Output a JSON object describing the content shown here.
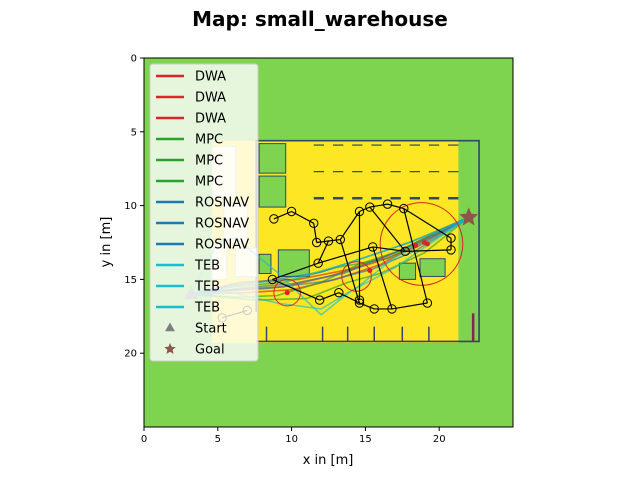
{
  "chart_data": {
    "type": "scatter",
    "title": "Map: small_warehouse",
    "xlabel": "x in [m]",
    "ylabel": "y in [m]",
    "xlim": [
      0,
      25
    ],
    "ylim": [
      25,
      0
    ],
    "x_ticks": [
      "0",
      "5",
      "10",
      "15",
      "20"
    ],
    "y_ticks": [
      "0",
      "5",
      "10",
      "15",
      "20"
    ],
    "legend_position": "top-left",
    "colors": {
      "background_free": "#7ed34f",
      "warehouse_floor": "#fde725",
      "wall": "#30466b",
      "DWA": "#d62728",
      "MPC": "#2ca02c",
      "ROSNAV": "#1f77b4",
      "TEB": "#17becf",
      "start_marker": "#7f7f7f",
      "goal_marker": "#8c564b"
    },
    "legend": [
      {
        "label": "DWA",
        "color": "#d62728",
        "marker": "line"
      },
      {
        "label": "DWA",
        "color": "#d62728",
        "marker": "line"
      },
      {
        "label": "DWA",
        "color": "#d62728",
        "marker": "line"
      },
      {
        "label": "MPC",
        "color": "#2ca02c",
        "marker": "line"
      },
      {
        "label": "MPC",
        "color": "#2ca02c",
        "marker": "line"
      },
      {
        "label": "MPC",
        "color": "#2ca02c",
        "marker": "line"
      },
      {
        "label": "ROSNAV",
        "color": "#1f77b4",
        "marker": "line"
      },
      {
        "label": "ROSNAV",
        "color": "#1f77b4",
        "marker": "line"
      },
      {
        "label": "ROSNAV",
        "color": "#1f77b4",
        "marker": "line"
      },
      {
        "label": "TEB",
        "color": "#17becf",
        "marker": "line"
      },
      {
        "label": "TEB",
        "color": "#17becf",
        "marker": "line"
      },
      {
        "label": "TEB",
        "color": "#17becf",
        "marker": "line"
      },
      {
        "label": "Start",
        "color": "#7f7f7f",
        "marker": "triangle"
      },
      {
        "label": "Goal",
        "color": "#8c564b",
        "marker": "star"
      }
    ],
    "start": [
      3.2,
      16.0
    ],
    "goal": [
      22.0,
      10.8
    ],
    "obstacle_waypoints": [
      [
        8.8,
        10.9
      ],
      [
        10.0,
        10.4
      ],
      [
        11.5,
        11.2
      ],
      [
        11.7,
        12.5
      ],
      [
        12.5,
        12.4
      ],
      [
        13.3,
        12.3
      ],
      [
        14.6,
        10.4
      ],
      [
        15.3,
        10.1
      ],
      [
        16.5,
        9.9
      ],
      [
        17.6,
        10.2
      ],
      [
        20.8,
        12.2
      ],
      [
        20.8,
        13.0
      ],
      [
        17.7,
        13.1
      ],
      [
        15.5,
        12.8
      ],
      [
        11.8,
        13.9
      ],
      [
        8.7,
        15.0
      ],
      [
        13.2,
        15.9
      ],
      [
        14.6,
        16.6
      ],
      [
        15.6,
        17.0
      ],
      [
        16.8,
        17.0
      ],
      [
        19.2,
        16.6
      ],
      [
        11.9,
        16.4
      ],
      [
        7.0,
        17.1
      ],
      [
        5.3,
        17.6
      ],
      [
        14.6,
        16.4
      ]
    ],
    "obstacle_links": [
      [
        0,
        1
      ],
      [
        1,
        2
      ],
      [
        2,
        3
      ],
      [
        3,
        4
      ],
      [
        4,
        5
      ],
      [
        5,
        6
      ],
      [
        6,
        7
      ],
      [
        7,
        8
      ],
      [
        8,
        9
      ],
      [
        9,
        10
      ],
      [
        10,
        11
      ],
      [
        11,
        12
      ],
      [
        12,
        13
      ],
      [
        13,
        14
      ],
      [
        14,
        15
      ],
      [
        15,
        21
      ],
      [
        21,
        16
      ],
      [
        16,
        17
      ],
      [
        17,
        18
      ],
      [
        18,
        19
      ],
      [
        19,
        20
      ],
      [
        20,
        9
      ],
      [
        22,
        23
      ],
      [
        5,
        17
      ],
      [
        6,
        24
      ],
      [
        13,
        19
      ],
      [
        7,
        12
      ],
      [
        4,
        14
      ]
    ],
    "goal_radius_circles": [
      {
        "center": [
          18.8,
          12.6
        ],
        "radius": 2.8
      },
      {
        "center": [
          9.7,
          15.9
        ],
        "radius": 0.9
      },
      {
        "center": [
          14.4,
          14.8
        ],
        "radius": 1.0
      }
    ],
    "trajectories": [
      {
        "planner": "DWA",
        "points": [
          [
            3.2,
            16.0
          ],
          [
            6.0,
            15.7
          ],
          [
            9.5,
            15.5
          ],
          [
            12.5,
            14.8
          ],
          [
            15.5,
            13.9
          ],
          [
            18.5,
            12.8
          ],
          [
            22.0,
            10.8
          ]
        ]
      },
      {
        "planner": "DWA",
        "points": [
          [
            3.2,
            16.0
          ],
          [
            7.0,
            15.9
          ],
          [
            10.0,
            15.7
          ],
          [
            13.0,
            15.0
          ],
          [
            16.0,
            14.0
          ],
          [
            19.0,
            12.4
          ],
          [
            22.0,
            10.8
          ]
        ]
      },
      {
        "planner": "DWA",
        "points": [
          [
            3.2,
            16.0
          ],
          [
            6.5,
            15.2
          ],
          [
            10.5,
            15.0
          ],
          [
            14.0,
            14.3
          ],
          [
            17.0,
            13.2
          ],
          [
            20.0,
            11.7
          ],
          [
            22.0,
            10.8
          ]
        ]
      },
      {
        "planner": "MPC",
        "points": [
          [
            3.2,
            16.0
          ],
          [
            6.2,
            16.2
          ],
          [
            9.0,
            16.1
          ],
          [
            12.0,
            15.2
          ],
          [
            14.5,
            14.0
          ],
          [
            17.5,
            13.0
          ],
          [
            20.5,
            11.5
          ],
          [
            22.0,
            10.8
          ]
        ]
      },
      {
        "planner": "MPC",
        "points": [
          [
            3.2,
            16.0
          ],
          [
            6.0,
            15.5
          ],
          [
            9.5,
            15.2
          ],
          [
            13.0,
            14.2
          ],
          [
            16.5,
            13.6
          ],
          [
            19.5,
            12.0
          ],
          [
            22.0,
            10.8
          ]
        ]
      },
      {
        "planner": "MPC",
        "points": [
          [
            3.2,
            16.0
          ],
          [
            7.5,
            16.4
          ],
          [
            11.0,
            16.3
          ],
          [
            13.8,
            15.2
          ],
          [
            16.0,
            14.6
          ],
          [
            19.0,
            13.2
          ],
          [
            22.0,
            10.8
          ]
        ]
      },
      {
        "planner": "ROSNAV",
        "points": [
          [
            3.2,
            16.0
          ],
          [
            6.0,
            15.4
          ],
          [
            9.0,
            15.0
          ],
          [
            12.0,
            14.5
          ],
          [
            15.0,
            13.5
          ],
          [
            18.0,
            12.5
          ],
          [
            22.0,
            10.8
          ]
        ]
      },
      {
        "planner": "ROSNAV",
        "points": [
          [
            3.2,
            16.0
          ],
          [
            6.5,
            15.6
          ],
          [
            10.0,
            15.3
          ],
          [
            13.5,
            14.6
          ],
          [
            16.5,
            13.4
          ],
          [
            19.5,
            12.1
          ],
          [
            22.0,
            10.8
          ]
        ]
      },
      {
        "planner": "ROSNAV",
        "points": [
          [
            3.2,
            16.0
          ],
          [
            5.5,
            15.8
          ],
          [
            8.5,
            15.6
          ],
          [
            12.5,
            15.1
          ],
          [
            15.5,
            14.3
          ],
          [
            18.5,
            13.0
          ],
          [
            22.0,
            10.8
          ]
        ]
      },
      {
        "planner": "TEB",
        "points": [
          [
            3.2,
            16.0
          ],
          [
            6.0,
            15.9
          ],
          [
            9.0,
            16.6
          ],
          [
            12.0,
            17.0
          ],
          [
            14.5,
            15.5
          ],
          [
            17.0,
            13.5
          ],
          [
            20.0,
            12.0
          ],
          [
            22.0,
            10.8
          ]
        ]
      },
      {
        "planner": "TEB",
        "points": [
          [
            3.2,
            16.0
          ],
          [
            6.8,
            15.3
          ],
          [
            10.0,
            15.0
          ],
          [
            13.5,
            14.0
          ],
          [
            16.8,
            12.9
          ],
          [
            19.8,
            11.8
          ],
          [
            22.0,
            10.8
          ]
        ]
      },
      {
        "planner": "TEB",
        "points": [
          [
            3.2,
            16.0
          ],
          [
            5.0,
            12.5
          ],
          [
            6.2,
            12.2
          ],
          [
            9.0,
            14.5
          ],
          [
            12.0,
            17.4
          ],
          [
            14.0,
            15.8
          ],
          [
            17.0,
            14.2
          ],
          [
            22.0,
            10.8
          ]
        ]
      }
    ],
    "collision_points": [
      [
        19.0,
        12.5
      ],
      [
        19.2,
        12.6
      ],
      [
        9.7,
        15.9
      ],
      [
        15.3,
        14.4
      ],
      [
        18.4,
        12.7
      ]
    ]
  }
}
